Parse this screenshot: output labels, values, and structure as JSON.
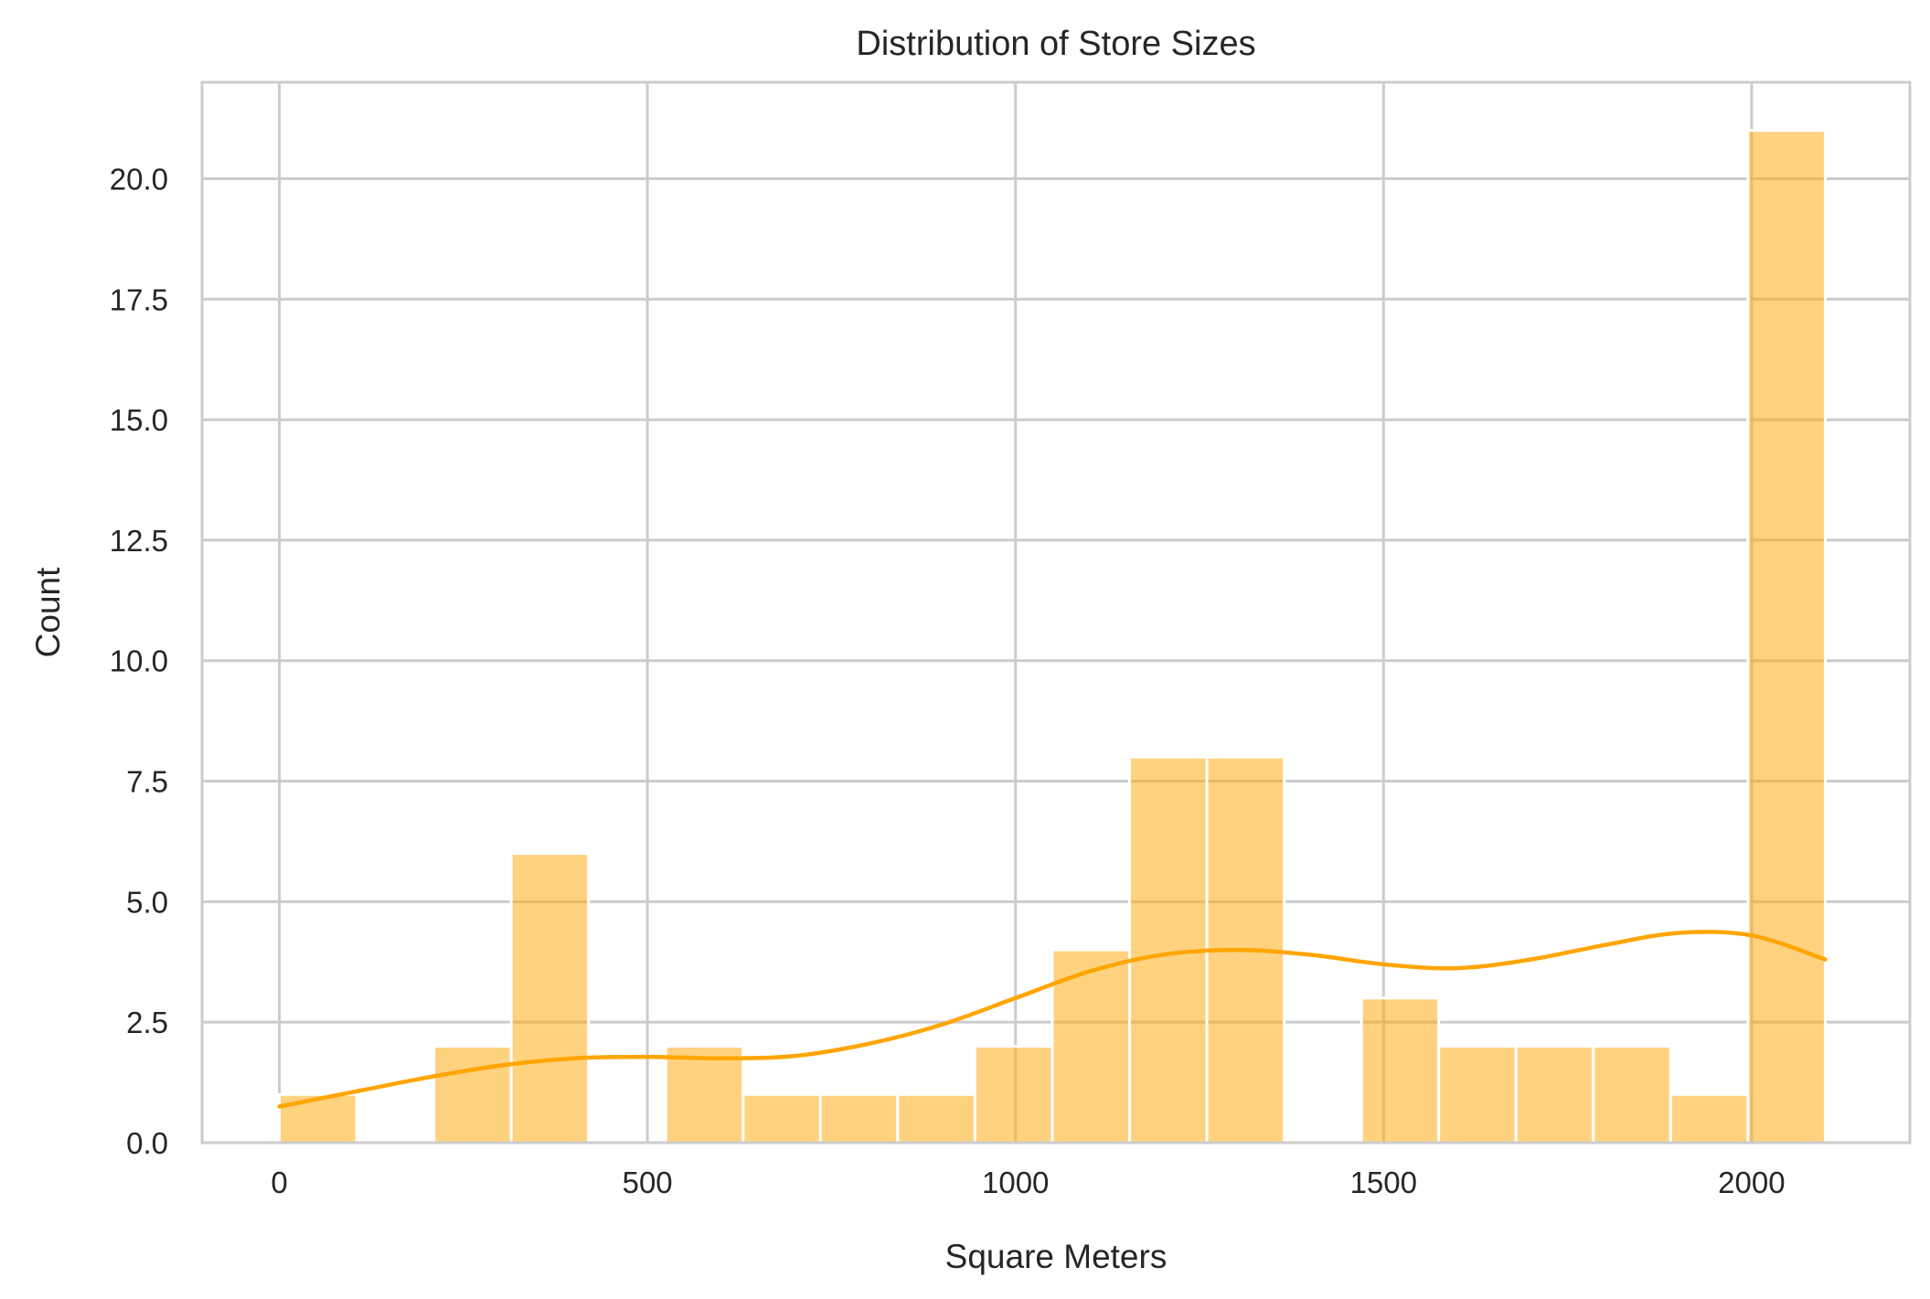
{
  "chart_data": {
    "type": "bar",
    "subtype": "histogram",
    "title": "Distribution of Store Sizes",
    "xlabel": "Square Meters",
    "ylabel": "Count",
    "xlim": [
      -105,
      2215
    ],
    "ylim": [
      0,
      22
    ],
    "xticks": [
      0,
      500,
      1000,
      1500,
      2000
    ],
    "xtick_labels": [
      "0",
      "500",
      "1000",
      "1500",
      "2000"
    ],
    "yticks": [
      0,
      2.5,
      5,
      7.5,
      10,
      12.5,
      15,
      17.5,
      20
    ],
    "ytick_labels": [
      "0.0",
      "2.5",
      "5.0",
      "7.5",
      "10.0",
      "12.5",
      "15.0",
      "17.5",
      "20.0"
    ],
    "grid": true,
    "bar_color": "#ffa500",
    "bins": [
      {
        "x0": 0,
        "x1": 105,
        "count": 1
      },
      {
        "x0": 105,
        "x1": 210,
        "count": 0
      },
      {
        "x0": 210,
        "x1": 315,
        "count": 2
      },
      {
        "x0": 315,
        "x1": 420,
        "count": 6
      },
      {
        "x0": 420,
        "x1": 525,
        "count": 0
      },
      {
        "x0": 525,
        "x1": 630,
        "count": 2
      },
      {
        "x0": 630,
        "x1": 735,
        "count": 1
      },
      {
        "x0": 735,
        "x1": 840,
        "count": 1
      },
      {
        "x0": 840,
        "x1": 945,
        "count": 1
      },
      {
        "x0": 945,
        "x1": 1050,
        "count": 2
      },
      {
        "x0": 1050,
        "x1": 1155,
        "count": 4
      },
      {
        "x0": 1155,
        "x1": 1260,
        "count": 8
      },
      {
        "x0": 1260,
        "x1": 1365,
        "count": 8
      },
      {
        "x0": 1365,
        "x1": 1470,
        "count": 0
      },
      {
        "x0": 1470,
        "x1": 1575,
        "count": 3
      },
      {
        "x0": 1575,
        "x1": 1680,
        "count": 2
      },
      {
        "x0": 1680,
        "x1": 1785,
        "count": 2
      },
      {
        "x0": 1785,
        "x1": 1890,
        "count": 2
      },
      {
        "x0": 1890,
        "x1": 1995,
        "count": 1
      },
      {
        "x0": 1995,
        "x1": 2100,
        "count": 21
      }
    ],
    "kde": {
      "x": [
        0,
        100,
        200,
        300,
        400,
        500,
        600,
        700,
        800,
        900,
        1000,
        1100,
        1200,
        1300,
        1400,
        1500,
        1600,
        1700,
        1800,
        1900,
        2000,
        2100
      ],
      "y": [
        0.75,
        1.05,
        1.35,
        1.6,
        1.75,
        1.78,
        1.75,
        1.8,
        2.05,
        2.45,
        3.0,
        3.55,
        3.9,
        4.0,
        3.9,
        3.7,
        3.62,
        3.8,
        4.1,
        4.35,
        4.3,
        3.8
      ]
    }
  }
}
